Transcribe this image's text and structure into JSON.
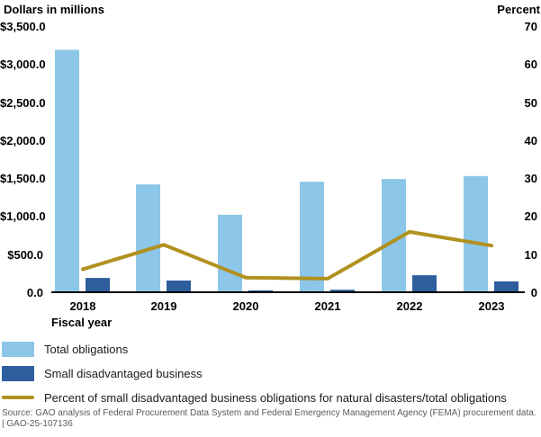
{
  "chart_data": {
    "type": "bar",
    "subtype": "grouped-bars-with-line",
    "categories": [
      "2018",
      "2019",
      "2020",
      "2021",
      "2022",
      "2023"
    ],
    "series": [
      {
        "name": "Total obligations",
        "kind": "bar",
        "axis": "left",
        "color": "#8CC6E8",
        "values": [
          3200,
          1430,
          1030,
          1465,
          1500,
          1540
        ]
      },
      {
        "name": "Small disadvantaged business",
        "kind": "bar",
        "axis": "left",
        "color": "#2F5E9E",
        "values": [
          200,
          165,
          35,
          45,
          235,
          155
        ]
      },
      {
        "name": "Percent of small disadvantaged business obligations for natural disasters/total obligations",
        "kind": "line",
        "axis": "right",
        "color": "#B1911F",
        "values": [
          6.3,
          12.7,
          4.1,
          3.8,
          16.1,
          12.5
        ]
      }
    ],
    "left_axis": {
      "title": "Dollars in millions",
      "ticks": [
        "$3,500.0",
        "$3,000.0",
        "$2,500.0",
        "$2,000.0",
        "$1,500.0",
        "$1,000.0",
        "$500.0",
        "0.0"
      ],
      "tick_values": [
        3500,
        3000,
        2500,
        2000,
        1500,
        1000,
        500,
        0
      ],
      "range": [
        0,
        3500
      ]
    },
    "right_axis": {
      "title": "Percent",
      "ticks": [
        "70",
        "60",
        "50",
        "40",
        "30",
        "20",
        "10",
        "0"
      ],
      "tick_values": [
        70,
        60,
        50,
        40,
        30,
        20,
        10,
        0
      ],
      "range": [
        0,
        70
      ]
    },
    "xlabel": "Fiscal year",
    "grid": false,
    "legend_position": "bottom-left",
    "baseline_color": "#000000"
  },
  "footer": {
    "source_line1": "Source: GAO analysis of Federal Procurement Data System and Federal Emergency Management Agency (FEMA) procurement data.",
    "source_line2": "|  GAO-25-107136"
  }
}
